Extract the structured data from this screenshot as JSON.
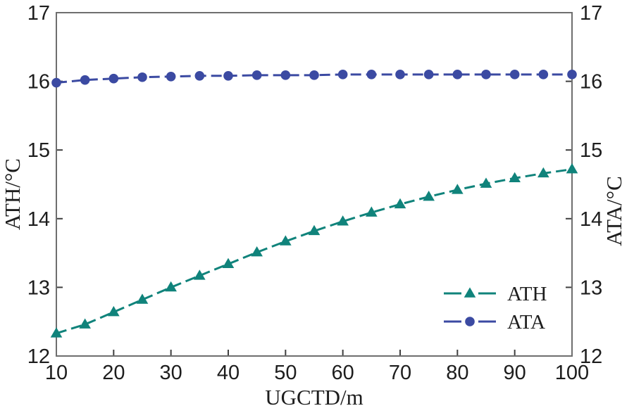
{
  "style": {
    "background": "#ffffff",
    "axis_color": "#6e6e6e",
    "tick_color": "#3f3f3f",
    "text_color": "#1d1d1d"
  },
  "chart_data": {
    "type": "line",
    "title": "",
    "xlabel": "UGCTD/m",
    "ylabel_left": "ATH/°C",
    "ylabel_right": "ATA/°C",
    "xlim": [
      10,
      100
    ],
    "ylim": [
      12,
      17
    ],
    "x_ticks": [
      10,
      20,
      30,
      40,
      50,
      60,
      70,
      80,
      90,
      100
    ],
    "y_ticks": [
      12,
      13,
      14,
      15,
      16,
      17
    ],
    "grid": false,
    "legend_position": "lower-right",
    "legend_border": false,
    "x": [
      10,
      15,
      20,
      25,
      30,
      35,
      40,
      45,
      50,
      55,
      60,
      65,
      70,
      75,
      80,
      85,
      90,
      95,
      100
    ],
    "series": [
      {
        "name": "ATH",
        "axis": "left",
        "color": "#10837b",
        "marker": "triangle",
        "line_style": "dashed",
        "values": [
          12.33,
          12.46,
          12.64,
          12.82,
          13.0,
          13.17,
          13.34,
          13.51,
          13.67,
          13.82,
          13.96,
          14.09,
          14.21,
          14.32,
          14.42,
          14.51,
          14.59,
          14.66,
          14.72
        ]
      },
      {
        "name": "ATA",
        "axis": "right",
        "color": "#3b4aa2",
        "marker": "circle",
        "line_style": "dashed",
        "values": [
          15.98,
          16.02,
          16.04,
          16.06,
          16.07,
          16.08,
          16.08,
          16.09,
          16.09,
          16.09,
          16.1,
          16.1,
          16.1,
          16.1,
          16.1,
          16.1,
          16.1,
          16.1,
          16.1
        ]
      }
    ]
  }
}
